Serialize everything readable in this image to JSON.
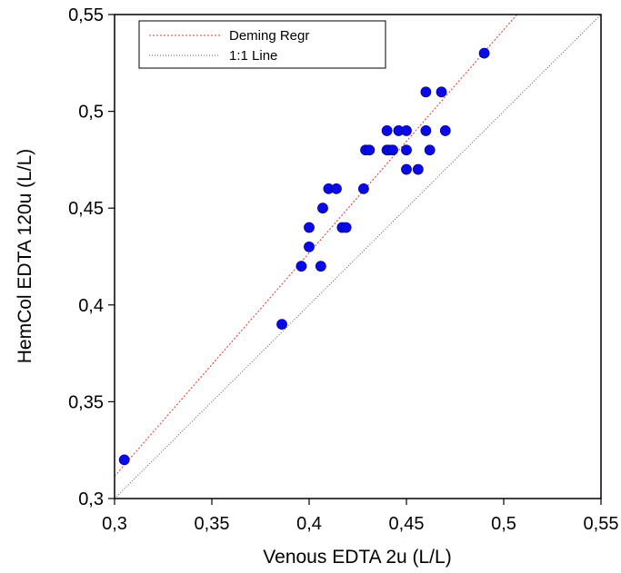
{
  "chart_data": {
    "type": "scatter",
    "title": "",
    "xlabel": "Venous EDTA 2u (L/L)",
    "ylabel": "HemCol EDTA 120u (L/L)",
    "xlim": [
      0.3,
      0.55
    ],
    "ylim": [
      0.3,
      0.55
    ],
    "x_ticks": [
      0.3,
      0.35,
      0.4,
      0.45,
      0.5,
      0.55
    ],
    "x_tick_labels": [
      "0,3",
      "0,35",
      "0,4",
      "0,45",
      "0,5",
      "0,55"
    ],
    "y_ticks": [
      0.3,
      0.35,
      0.4,
      0.45,
      0.5,
      0.55
    ],
    "y_tick_labels": [
      "0,3",
      "0,35",
      "0,4",
      "0,45",
      "0,5",
      "0,55"
    ],
    "grid": false,
    "legend_position": "top-left",
    "legend": [
      {
        "label": "Deming Regr",
        "style": "dashed",
        "color": "#e8332a"
      },
      {
        "label": "1:1 Line",
        "style": "dotted",
        "color": "#555555"
      }
    ],
    "point_color": "#0a0ae6",
    "series": [
      {
        "x": [
          0.305,
          0.386,
          0.396,
          0.4,
          0.4,
          0.406,
          0.407,
          0.41,
          0.414,
          0.417,
          0.419,
          0.428,
          0.429,
          0.431,
          0.44,
          0.44,
          0.441,
          0.443,
          0.446,
          0.45,
          0.45,
          0.45,
          0.456,
          0.46,
          0.46,
          0.462,
          0.468,
          0.47,
          0.49
        ],
        "y": [
          0.32,
          0.39,
          0.42,
          0.43,
          0.44,
          0.42,
          0.45,
          0.46,
          0.46,
          0.44,
          0.44,
          0.46,
          0.48,
          0.48,
          0.48,
          0.49,
          0.48,
          0.48,
          0.49,
          0.49,
          0.48,
          0.47,
          0.47,
          0.51,
          0.49,
          0.48,
          0.51,
          0.49,
          0.53
        ]
      }
    ],
    "lines": [
      {
        "name": "Deming Regr",
        "x": [
          0.3,
          0.5068
        ],
        "y": [
          0.3115,
          0.55
        ]
      },
      {
        "name": "1:1 Line",
        "x": [
          0.3,
          0.55
        ],
        "y": [
          0.3,
          0.55
        ]
      }
    ]
  }
}
